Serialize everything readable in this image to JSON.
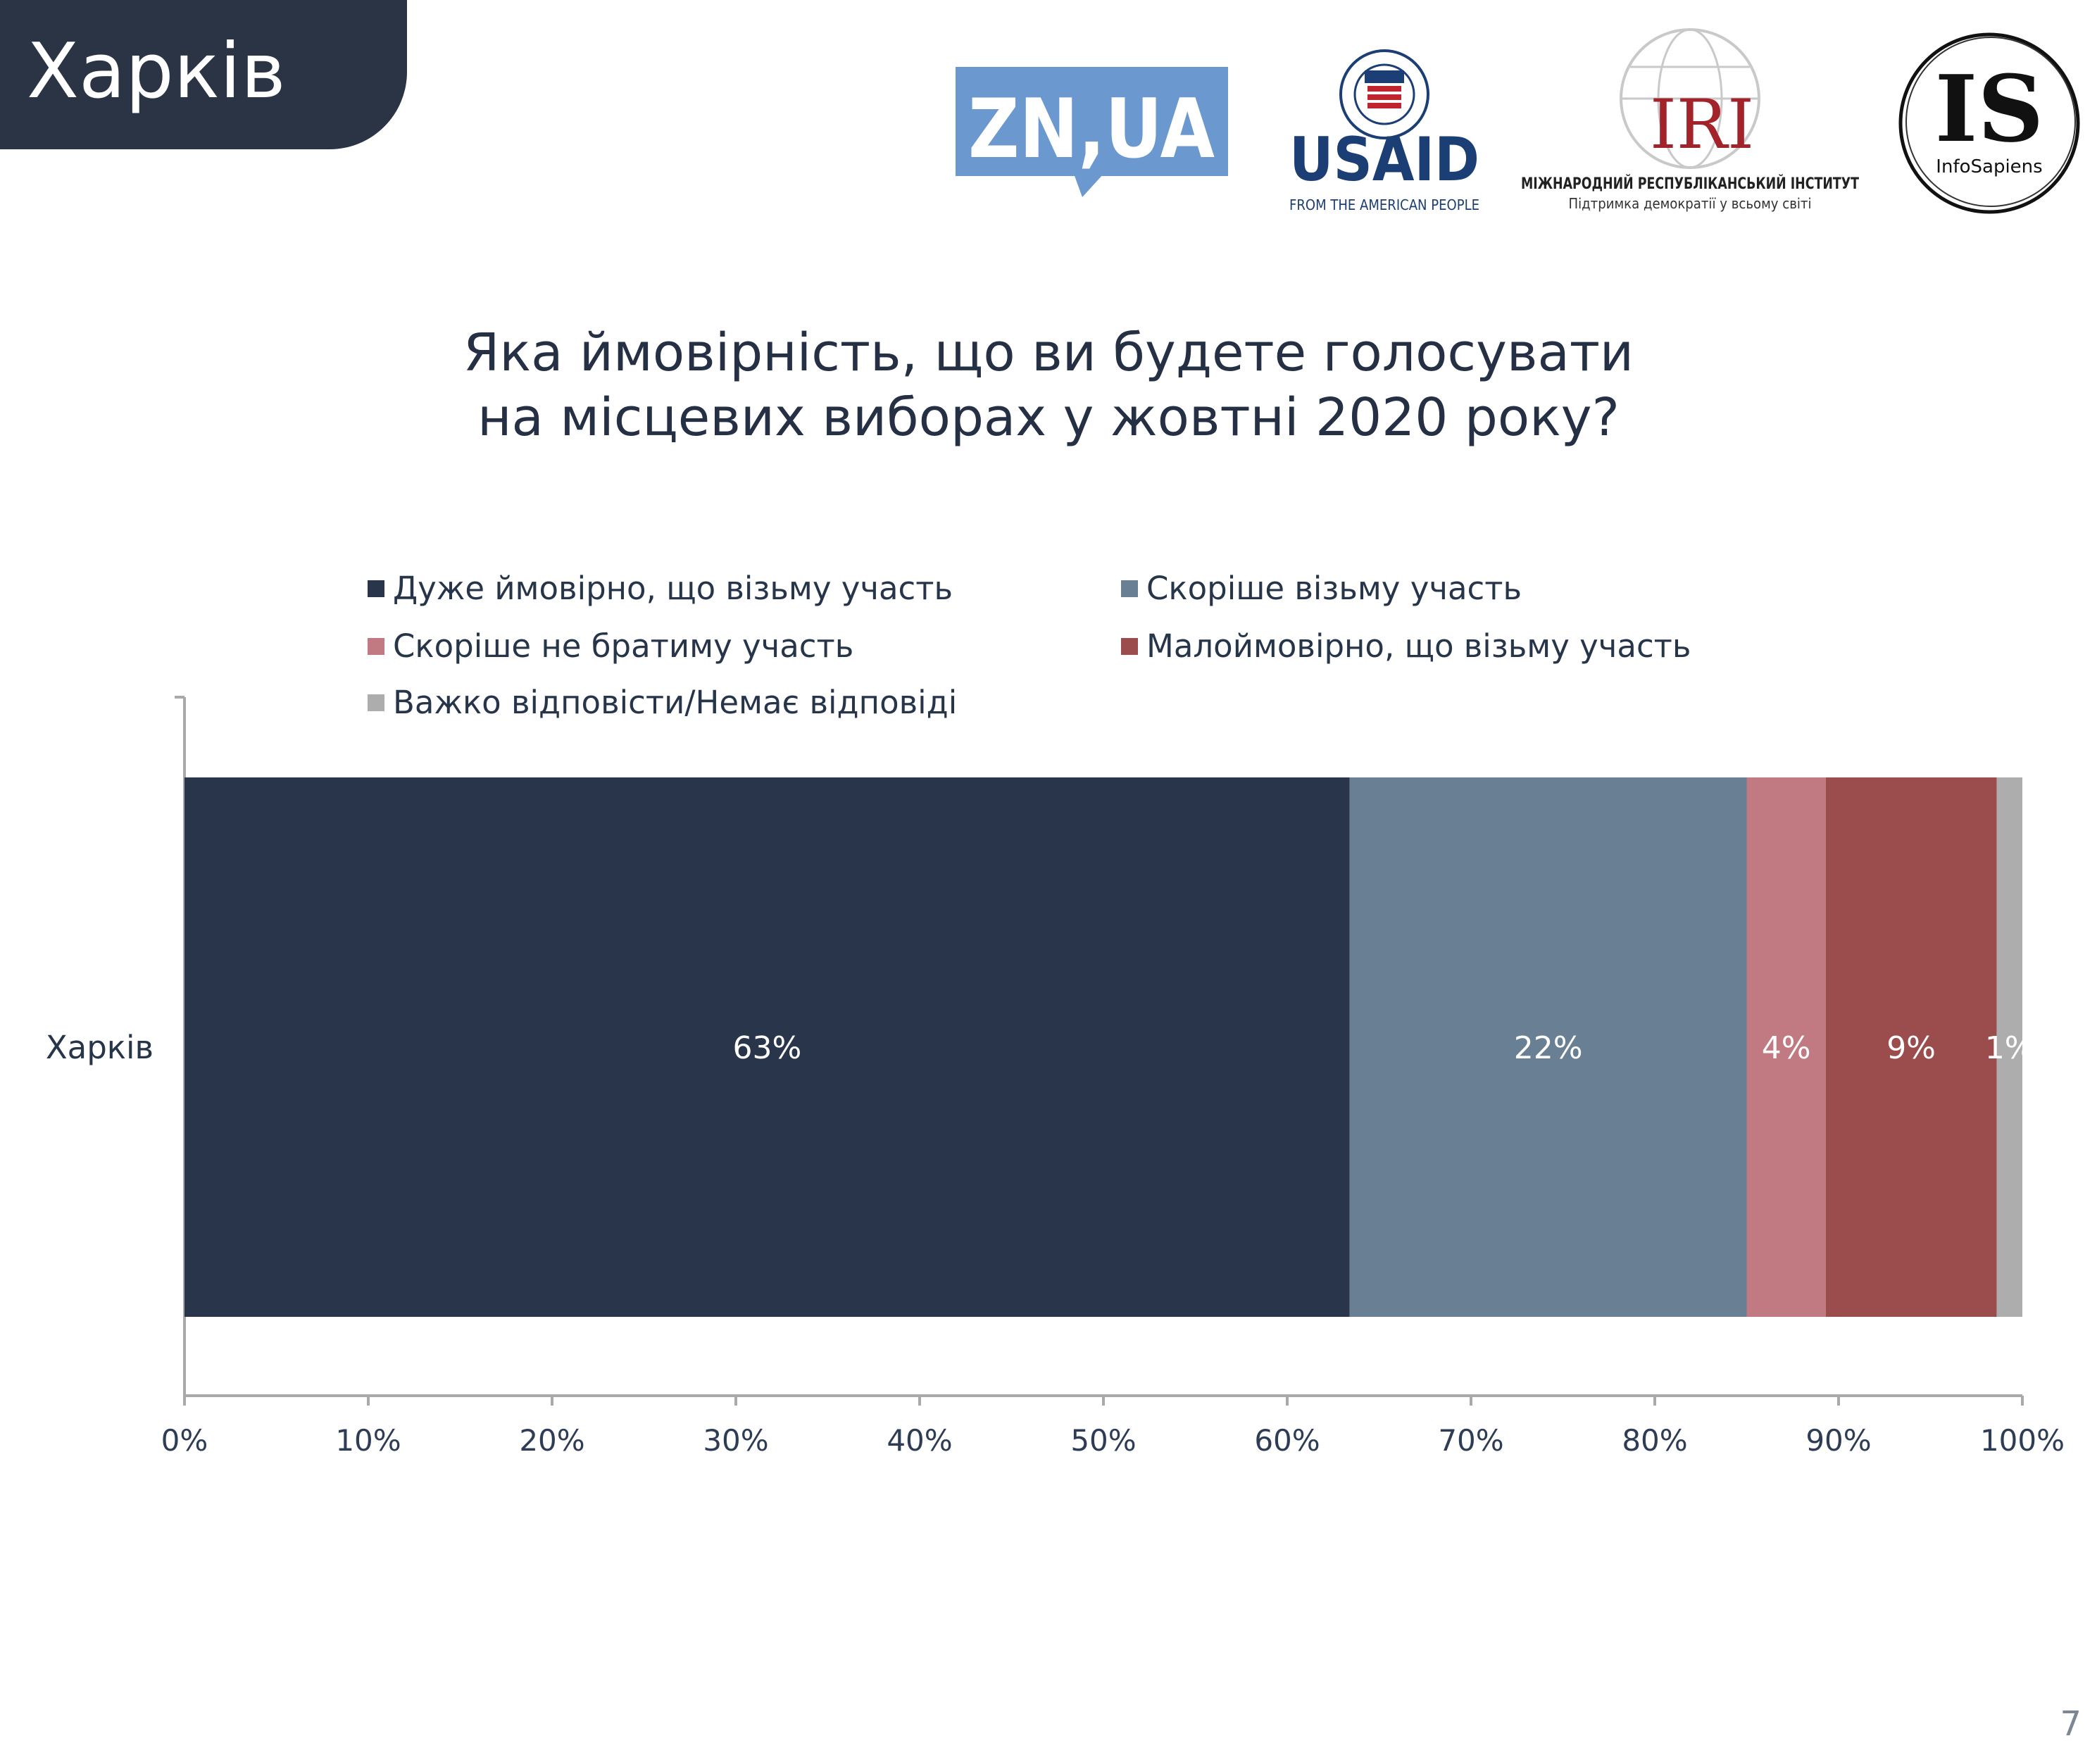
{
  "header": {
    "region_tab": "Харків",
    "page_number": "7"
  },
  "logos": {
    "zn": "ZN,UA",
    "usaid": {
      "wordmark": "USAID",
      "tagline": "FROM THE AMERICAN PEOPLE",
      "seal_text": "UNITED STATES AGENCY INTERNATIONAL DEVELOPMENT"
    },
    "iri": {
      "wordmark": "IRI",
      "line1": "МІЖНАРОДНИЙ РЕСПУБЛІКАНСЬКИЙ ІНСТИТУТ",
      "line2": "Підтримка демократії у всьому світі"
    },
    "infosapiens": {
      "wordmark": "IS",
      "name": "InfoSapiens"
    }
  },
  "colors": {
    "header_bg": "#2a3445",
    "zn_blue": "#6a98cf",
    "usaid_blue": "#1b3e74",
    "usaid_red": "#c0252f",
    "iri_red": "#a3232a"
  },
  "chart_data": {
    "type": "bar",
    "orientation": "horizontal",
    "stacked": true,
    "title_lines": [
      "Яка ймовірність, що ви будете голосувати",
      "на місцевих виборах у жовтні 2020 року?"
    ],
    "categories": [
      "Харків"
    ],
    "series": [
      {
        "name": "Дуже ймовірно, що візьму участь",
        "values": [
          63.4
        ],
        "label": "63%",
        "color": "#29354a",
        "label_color": "#ffffff"
      },
      {
        "name": "Скоріше візьму участь",
        "values": [
          21.6
        ],
        "label": "22%",
        "color": "#697f93",
        "label_color": "#ffffff"
      },
      {
        "name": "Скоріше не братиму участь",
        "values": [
          4.3
        ],
        "label": "4%",
        "color": "#c27a82",
        "label_color": "#ffffff"
      },
      {
        "name": "Малоймовірно, що візьму участь",
        "values": [
          9.3
        ],
        "label": "9%",
        "color": "#9b4c4c",
        "label_color": "#ffffff"
      },
      {
        "name": "Важко відповісти/Немає відповіді",
        "values": [
          1.4
        ],
        "label": "1%",
        "color": "#adadad",
        "label_color": "#ffffff"
      }
    ],
    "x_ticks": [
      "0%",
      "10%",
      "20%",
      "30%",
      "40%",
      "50%",
      "60%",
      "70%",
      "80%",
      "90%",
      "100%"
    ],
    "xlim": [
      0,
      100
    ],
    "grid": false,
    "legend_position": "top"
  }
}
